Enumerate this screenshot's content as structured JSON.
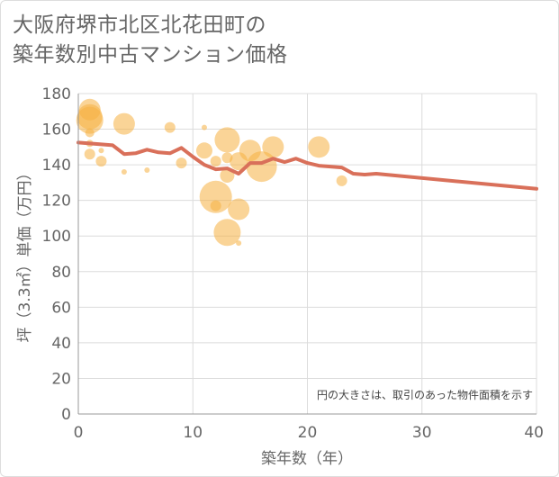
{
  "title_lines": [
    "大阪府堺市北区北花田町の",
    "築年数別中古マンション価格"
  ],
  "chart_data": {
    "type": "scatter",
    "title": "大阪府堺市北区北花田町の築年数別中古マンション価格",
    "xlabel": "築年数（年）",
    "ylabel": "坪（3.3㎡）単価（万円）",
    "xlim": [
      0,
      40
    ],
    "ylim": [
      0,
      180
    ],
    "x_ticks": [
      0,
      10,
      20,
      30,
      40
    ],
    "y_ticks": [
      0,
      20,
      40,
      60,
      80,
      100,
      120,
      140,
      160,
      180
    ],
    "grid": true,
    "note": "円の大きさは、取引のあった物件面積を示す",
    "bubble_color": "#F5B041",
    "line_color": "#D9705A",
    "bubbles": [
      {
        "x": 1,
        "y": 171,
        "size": 12
      },
      {
        "x": 1,
        "y": 167,
        "size": 14
      },
      {
        "x": 1,
        "y": 165,
        "size": 15
      },
      {
        "x": 1,
        "y": 158,
        "size": 5
      },
      {
        "x": 1,
        "y": 152,
        "size": 4
      },
      {
        "x": 1,
        "y": 146,
        "size": 6
      },
      {
        "x": 2,
        "y": 142,
        "size": 6
      },
      {
        "x": 2,
        "y": 148,
        "size": 3
      },
      {
        "x": 4,
        "y": 163,
        "size": 12
      },
      {
        "x": 4,
        "y": 136,
        "size": 3
      },
      {
        "x": 6,
        "y": 137,
        "size": 3
      },
      {
        "x": 8,
        "y": 161,
        "size": 6
      },
      {
        "x": 9,
        "y": 141,
        "size": 6
      },
      {
        "x": 11,
        "y": 161,
        "size": 3
      },
      {
        "x": 11,
        "y": 148,
        "size": 9
      },
      {
        "x": 12,
        "y": 142,
        "size": 6
      },
      {
        "x": 12,
        "y": 122,
        "size": 18
      },
      {
        "x": 12,
        "y": 117,
        "size": 6
      },
      {
        "x": 13,
        "y": 154,
        "size": 14
      },
      {
        "x": 13,
        "y": 144,
        "size": 6
      },
      {
        "x": 13,
        "y": 134,
        "size": 8
      },
      {
        "x": 13,
        "y": 102,
        "size": 15
      },
      {
        "x": 14,
        "y": 142,
        "size": 10
      },
      {
        "x": 14,
        "y": 115,
        "size": 12
      },
      {
        "x": 14,
        "y": 96,
        "size": 3
      },
      {
        "x": 15,
        "y": 148,
        "size": 12
      },
      {
        "x": 16,
        "y": 139,
        "size": 17
      },
      {
        "x": 17,
        "y": 150,
        "size": 12
      },
      {
        "x": 21,
        "y": 150,
        "size": 12
      },
      {
        "x": 23,
        "y": 131,
        "size": 6
      }
    ],
    "line": {
      "x": [
        0,
        1,
        2,
        3,
        4,
        5,
        6,
        7,
        8,
        9,
        10,
        11,
        12,
        13,
        14,
        15,
        16,
        17,
        18,
        19,
        20,
        21,
        22,
        23,
        24,
        25,
        26,
        40
      ],
      "y": [
        152.5,
        152,
        151.5,
        151,
        146,
        146.5,
        148.5,
        147,
        146.5,
        149.5,
        144.5,
        140,
        137.5,
        138,
        135,
        141,
        141,
        143.5,
        141.5,
        143.5,
        141,
        139.5,
        139,
        138.5,
        135,
        134.5,
        135,
        126.5
      ]
    }
  }
}
